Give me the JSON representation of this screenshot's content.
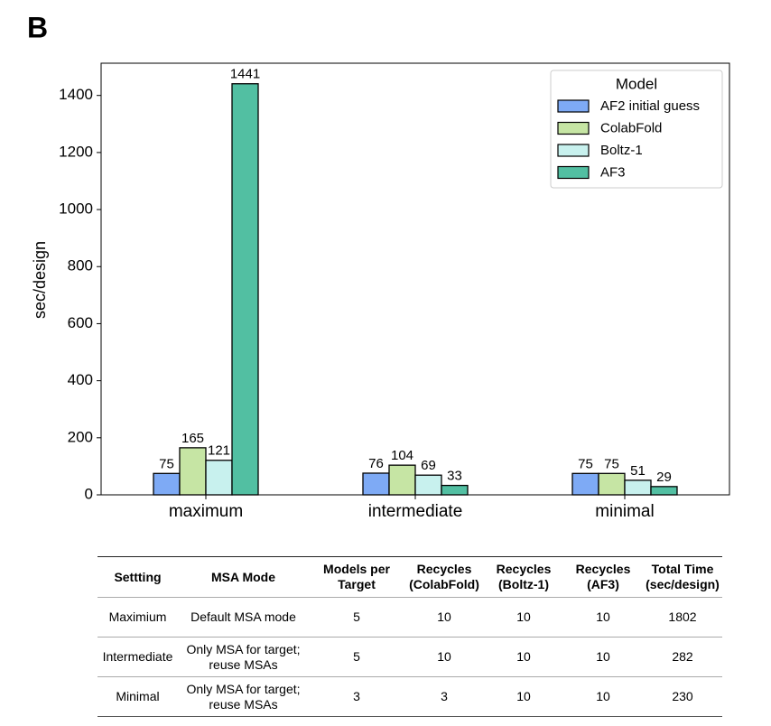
{
  "panel_label": "B",
  "chart_data": {
    "type": "bar",
    "ylabel": "sec/design",
    "categories": [
      "maximum",
      "intermediate",
      "minimal"
    ],
    "series": [
      {
        "name": "AF2 initial guess",
        "color": "#7eaaf5",
        "values": [
          75,
          76,
          75
        ]
      },
      {
        "name": "ColabFold",
        "color": "#c6e5a4",
        "values": [
          165,
          104,
          75
        ]
      },
      {
        "name": "Boltz-1",
        "color": "#c8f1ee",
        "values": [
          121,
          69,
          51
        ]
      },
      {
        "name": "AF3",
        "color": "#52bfa2",
        "values": [
          1441,
          33,
          29
        ]
      }
    ],
    "ylim": [
      0,
      1513
    ],
    "yticks": [
      0,
      200,
      400,
      600,
      800,
      1000,
      1200,
      1400
    ],
    "legend_title": "Model",
    "legend": "upper right",
    "grid": false
  },
  "table": {
    "header": [
      "Settting",
      "MSA Mode",
      "Models per Target",
      "Recycles (ColabFold)",
      "Recycles (Boltz-1)",
      "Recycles (AF3)",
      "Total Time (sec/design)"
    ],
    "rows": [
      [
        "Maximium",
        "Default MSA mode",
        5,
        10,
        10,
        10,
        1802
      ],
      [
        "Intermediate",
        "Only MSA for target; reuse MSAs",
        5,
        10,
        10,
        10,
        282
      ],
      [
        "Minimal",
        "Only MSA for target; reuse MSAs",
        3,
        3,
        10,
        10,
        230
      ]
    ]
  }
}
